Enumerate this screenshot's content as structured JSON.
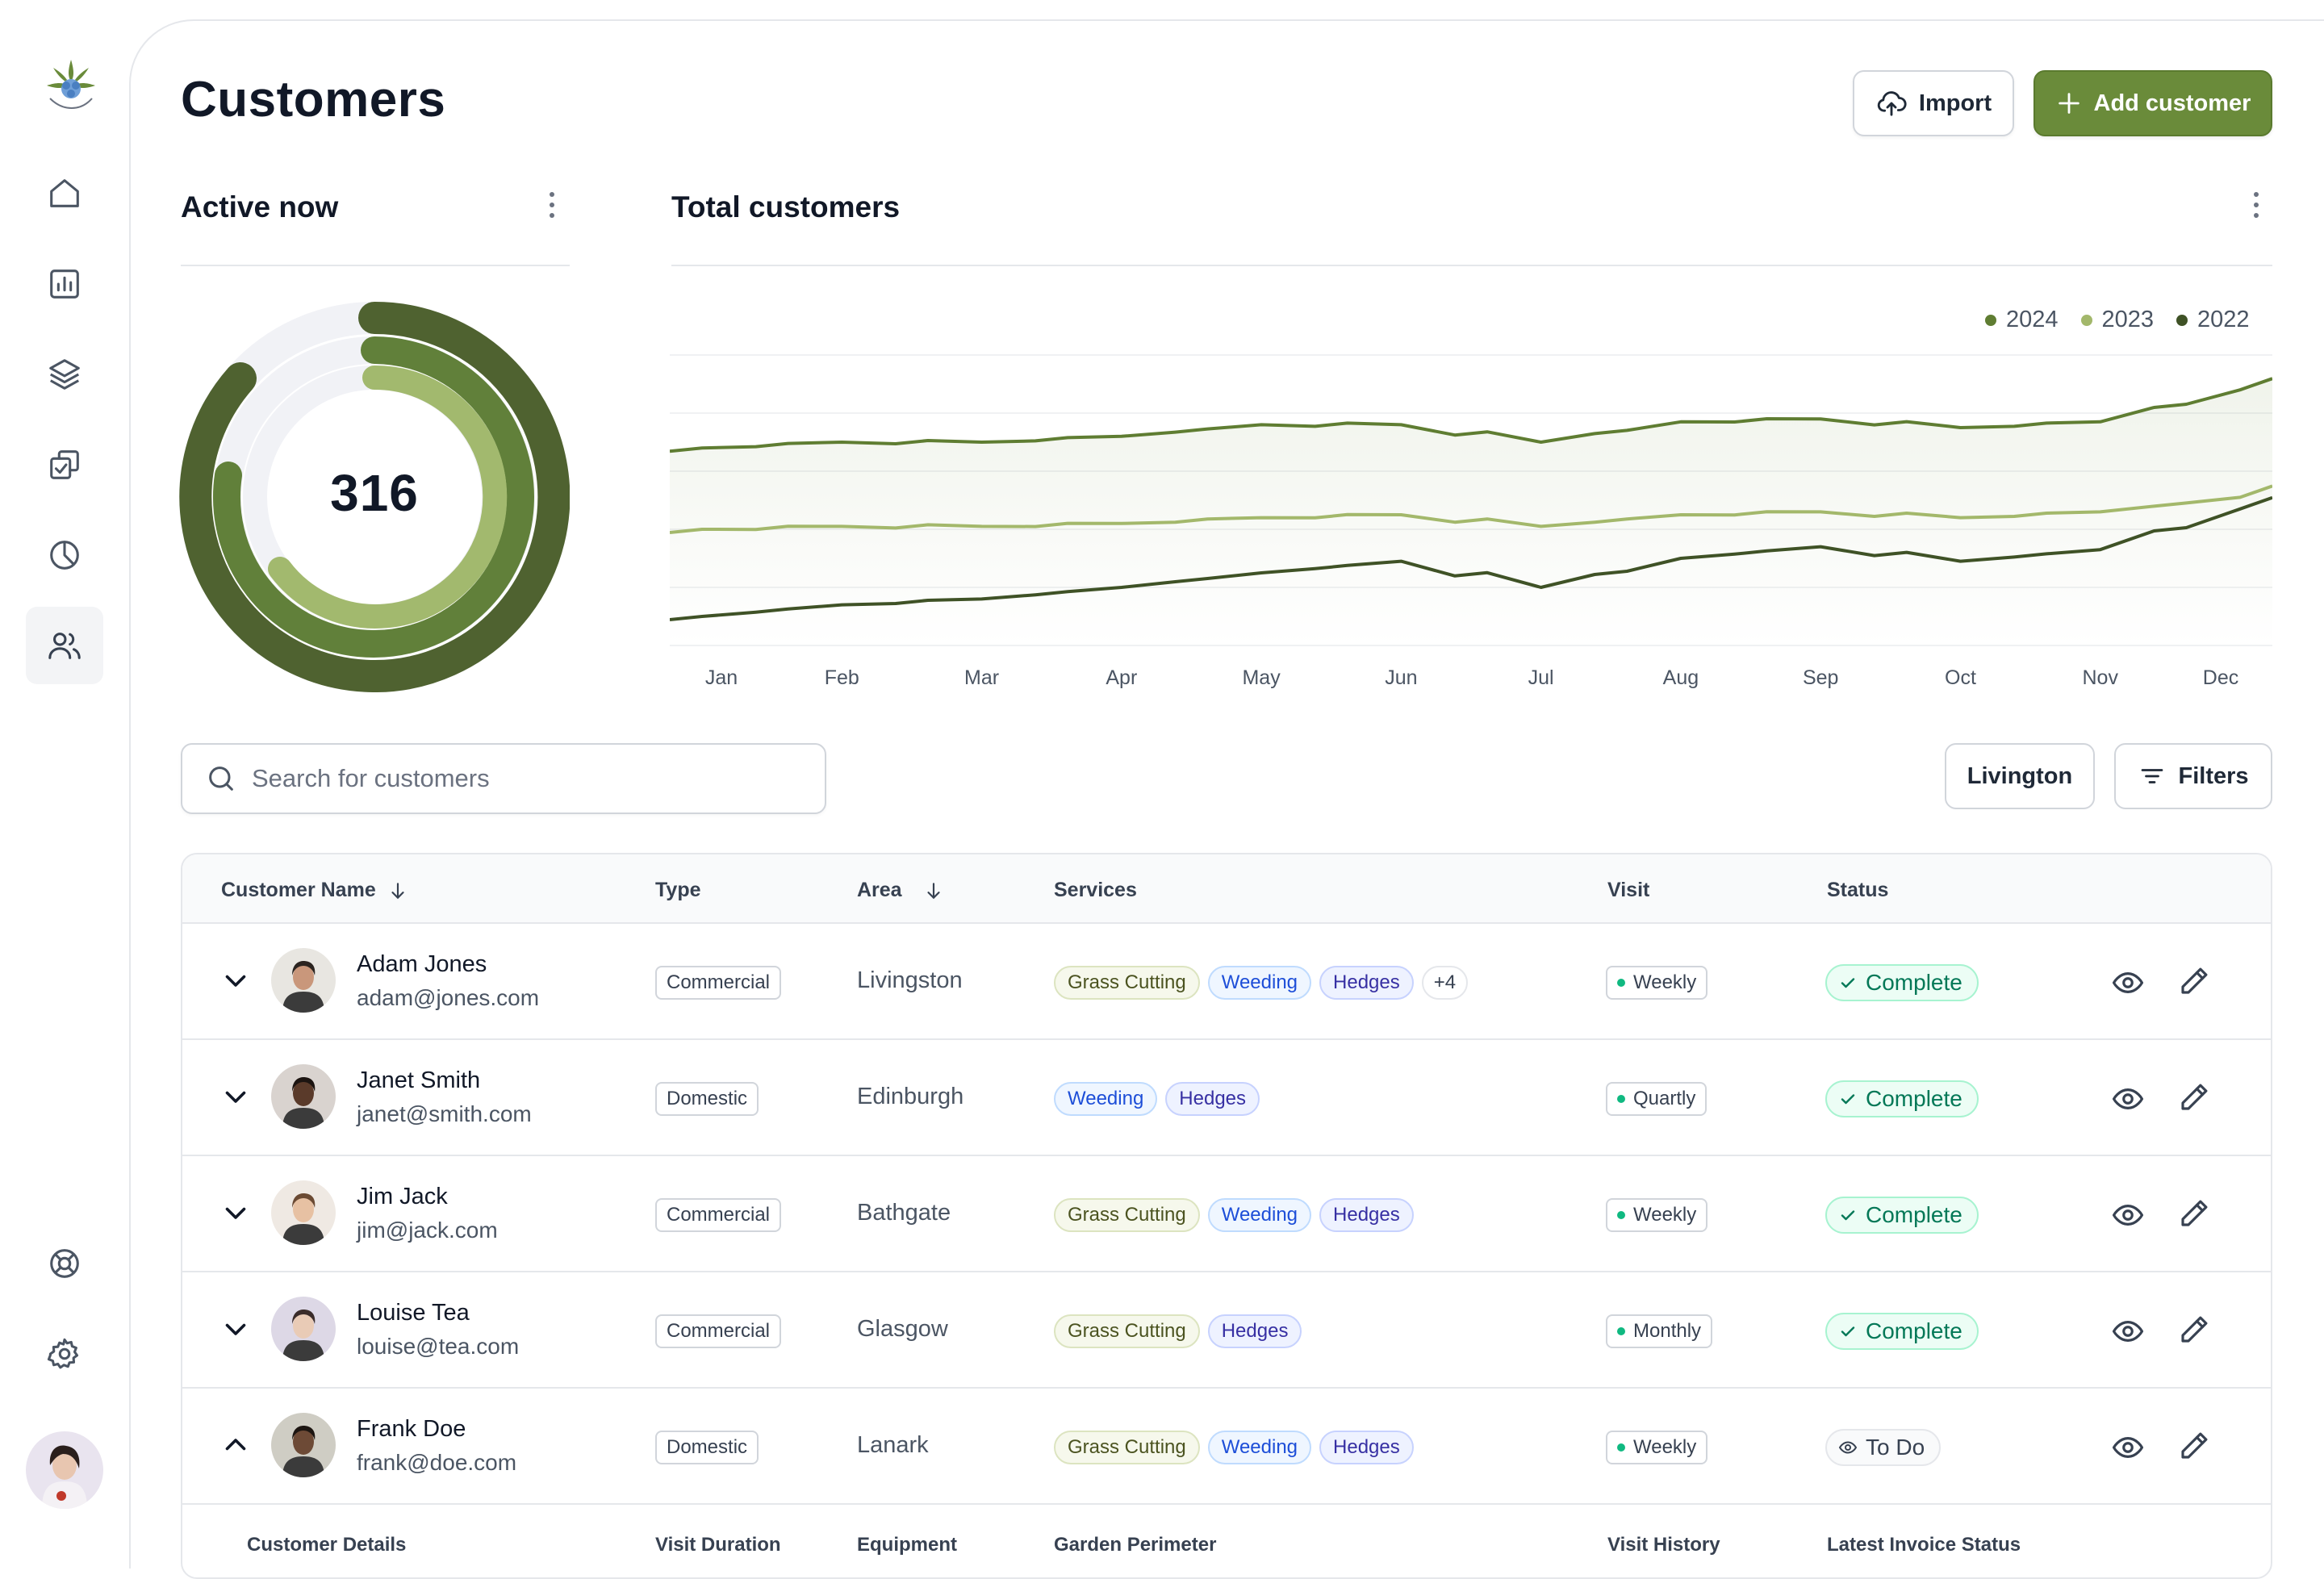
{
  "page": {
    "title": "Customers"
  },
  "header": {
    "import_label": "Import",
    "add_label": "Add customer"
  },
  "active_now": {
    "title": "Active now",
    "value": "316"
  },
  "total_customers": {
    "title": "Total customers"
  },
  "chart_data": {
    "type": "line",
    "categories": [
      "Jan",
      "Feb",
      "Mar",
      "Apr",
      "May",
      "Jun",
      "Jul",
      "Aug",
      "Sep",
      "Oct",
      "Nov",
      "Dec"
    ],
    "series": [
      {
        "name": "2024",
        "color": "#5f7d32",
        "values": [
          68,
          70,
          70,
          72,
          76,
          76,
          70,
          77,
          78,
          75,
          77,
          88
        ]
      },
      {
        "name": "2023",
        "color": "#a3b86b",
        "values": [
          40,
          41,
          41,
          42,
          44,
          45,
          41,
          45,
          46,
          44,
          46,
          51
        ]
      },
      {
        "name": "2022",
        "color": "#3f5226",
        "values": [
          10,
          14,
          16,
          20,
          25,
          29,
          20,
          30,
          34,
          29,
          33,
          47
        ]
      }
    ],
    "grid": true,
    "legend": "top-right"
  },
  "search": {
    "placeholder": "Search for customers"
  },
  "filters": {
    "area_label": "Livington",
    "filters_label": "Filters"
  },
  "table": {
    "columns": {
      "name": "Customer Name",
      "type": "Type",
      "area": "Area",
      "services": "Services",
      "visit": "Visit",
      "status": "Status"
    },
    "rows": [
      {
        "name": "Adam Jones",
        "email": "adam@jones.com",
        "type": "Commercial",
        "area": "Livingston",
        "services": [
          "Grass Cutting",
          "Weeding",
          "Hedges"
        ],
        "more": "+4",
        "visit": "Weekly",
        "status": "Complete"
      },
      {
        "name": "Janet Smith",
        "email": "janet@smith.com",
        "type": "Domestic",
        "area": "Edinburgh",
        "services": [
          "Weeding",
          "Hedges"
        ],
        "visit": "Quartly",
        "status": "Complete"
      },
      {
        "name": "Jim Jack",
        "email": "jim@jack.com",
        "type": "Commercial",
        "area": "Bathgate",
        "services": [
          "Grass Cutting",
          "Weeding",
          "Hedges"
        ],
        "visit": "Weekly",
        "status": "Complete"
      },
      {
        "name": "Louise Tea",
        "email": "louise@tea.com",
        "type": "Commercial",
        "area": "Glasgow",
        "services": [
          "Grass Cutting",
          "Hedges"
        ],
        "visit": "Monthly",
        "status": "Complete"
      },
      {
        "name": "Frank Doe",
        "email": "frank@doe.com",
        "type": "Domestic",
        "area": "Lanark",
        "services": [
          "Grass Cutting",
          "Weeding",
          "Hedges"
        ],
        "visit": "Weekly",
        "status": "To Do"
      }
    ],
    "detail_columns": [
      "Customer Details",
      "Visit Duration",
      "Equipment",
      "Garden Perimeter",
      "Visit History",
      "Latest Invoice Status"
    ]
  }
}
